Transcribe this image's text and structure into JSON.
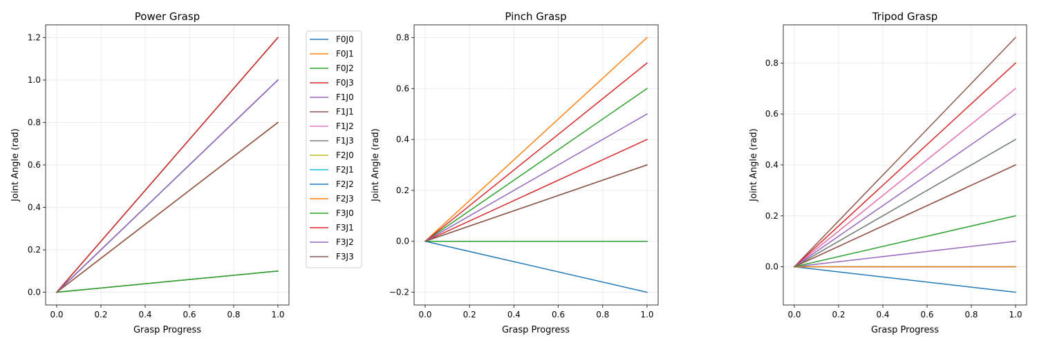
{
  "chart_data": [
    {
      "type": "line",
      "title": "Power Grasp",
      "xlabel": "Grasp Progress",
      "ylabel": "Joint Angle (rad)",
      "xlim": [
        -0.05,
        1.05
      ],
      "ylim": [
        -0.06,
        1.26
      ],
      "xticks": [
        0.0,
        0.2,
        0.4,
        0.6,
        0.8,
        1.0
      ],
      "yticks": [
        0.0,
        0.2,
        0.4,
        0.6,
        0.8,
        1.0,
        1.2
      ],
      "tick_decimals": 1,
      "grid": true,
      "legend_position": "outside-right",
      "x": [
        0.0,
        1.0
      ],
      "series": [
        {
          "name": "F0J0",
          "color": "#1f77b4",
          "values": [
            0,
            0.1
          ]
        },
        {
          "name": "F0J1",
          "color": "#ff7f0e",
          "values": [
            0,
            1.2
          ]
        },
        {
          "name": "F0J2",
          "color": "#2ca02c",
          "values": [
            0,
            1.0
          ]
        },
        {
          "name": "F0J3",
          "color": "#d62728",
          "values": [
            0,
            0.8
          ]
        },
        {
          "name": "F1J0",
          "color": "#9467bd",
          "values": [
            0,
            0.1
          ]
        },
        {
          "name": "F1J1",
          "color": "#8c564b",
          "values": [
            0,
            1.2
          ]
        },
        {
          "name": "F1J2",
          "color": "#e377c2",
          "values": [
            0,
            1.0
          ]
        },
        {
          "name": "F1J3",
          "color": "#7f7f7f",
          "values": [
            0,
            0.8
          ]
        },
        {
          "name": "F2J0",
          "color": "#bcbd22",
          "values": [
            0,
            0.1
          ]
        },
        {
          "name": "F2J1",
          "color": "#17becf",
          "values": [
            0,
            1.2
          ]
        },
        {
          "name": "F2J2",
          "color": "#1f77b4",
          "values": [
            0,
            1.0
          ]
        },
        {
          "name": "F2J3",
          "color": "#ff7f0e",
          "values": [
            0,
            0.8
          ]
        },
        {
          "name": "F3J0",
          "color": "#2ca02c",
          "values": [
            0,
            0.1
          ]
        },
        {
          "name": "F3J1",
          "color": "#d62728",
          "values": [
            0,
            1.2
          ]
        },
        {
          "name": "F3J2",
          "color": "#9467bd",
          "values": [
            0,
            1.0
          ]
        },
        {
          "name": "F3J3",
          "color": "#8c564b",
          "values": [
            0,
            0.8
          ]
        }
      ]
    },
    {
      "type": "line",
      "title": "Pinch Grasp",
      "xlabel": "Grasp Progress",
      "ylabel": "Joint Angle (rad)",
      "xlim": [
        -0.05,
        1.05
      ],
      "ylim": [
        -0.25,
        0.85
      ],
      "xticks": [
        0.0,
        0.2,
        0.4,
        0.6,
        0.8,
        1.0
      ],
      "yticks": [
        -0.2,
        0.0,
        0.2,
        0.4,
        0.6,
        0.8
      ],
      "tick_decimals": 1,
      "grid": true,
      "x": [
        0.0,
        1.0
      ],
      "series": [
        {
          "color": "#1f77b4",
          "values": [
            0,
            -0.2
          ]
        },
        {
          "color": "#ff7f0e",
          "values": [
            0,
            0.8
          ]
        },
        {
          "color": "#2ca02c",
          "values": [
            0,
            0.6
          ]
        },
        {
          "color": "#d62728",
          "values": [
            0,
            0.4
          ]
        },
        {
          "color": "#9467bd",
          "values": [
            0,
            0.0
          ]
        },
        {
          "color": "#8c564b",
          "values": [
            0,
            0.3
          ]
        },
        {
          "color": "#e377c2",
          "values": [
            0,
            0.0
          ]
        },
        {
          "color": "#7f7f7f",
          "values": [
            0,
            0.0
          ]
        },
        {
          "color": "#bcbd22",
          "values": [
            0,
            0.0
          ]
        },
        {
          "color": "#17becf",
          "values": [
            0,
            0.0
          ]
        },
        {
          "color": "#1f77b4",
          "values": [
            0,
            0.0
          ]
        },
        {
          "color": "#ff7f0e",
          "values": [
            0,
            0.0
          ]
        },
        {
          "color": "#2ca02c",
          "values": [
            0,
            0.0
          ]
        },
        {
          "color": "#d62728",
          "values": [
            0,
            0.7
          ]
        },
        {
          "color": "#9467bd",
          "values": [
            0,
            0.5
          ]
        },
        {
          "color": "#8c564b",
          "values": [
            0,
            0.3
          ]
        }
      ]
    },
    {
      "type": "line",
      "title": "Tripod Grasp",
      "xlabel": "Grasp Progress",
      "ylabel": "Joint Angle (rad)",
      "xlim": [
        -0.05,
        1.05
      ],
      "ylim": [
        -0.15,
        0.95
      ],
      "xticks": [
        0.0,
        0.2,
        0.4,
        0.6,
        0.8,
        1.0
      ],
      "yticks": [
        0.0,
        0.2,
        0.4,
        0.6,
        0.8
      ],
      "tick_decimals": 1,
      "grid": true,
      "x": [
        0.0,
        1.0
      ],
      "series": [
        {
          "color": "#1f77b4",
          "values": [
            0,
            -0.1
          ]
        },
        {
          "color": "#ff7f0e",
          "values": [
            0,
            0.7
          ]
        },
        {
          "color": "#2ca02c",
          "values": [
            0,
            0.5
          ]
        },
        {
          "color": "#d62728",
          "values": [
            0,
            0.4
          ]
        },
        {
          "color": "#9467bd",
          "values": [
            0,
            0.1
          ]
        },
        {
          "color": "#8c564b",
          "values": [
            0,
            0.9
          ]
        },
        {
          "color": "#e377c2",
          "values": [
            0,
            0.7
          ]
        },
        {
          "color": "#7f7f7f",
          "values": [
            0,
            0.5
          ]
        },
        {
          "color": "#bcbd22",
          "values": [
            0,
            0.0
          ]
        },
        {
          "color": "#17becf",
          "values": [
            0,
            0.0
          ]
        },
        {
          "color": "#1f77b4",
          "values": [
            0,
            0.0
          ]
        },
        {
          "color": "#ff7f0e",
          "values": [
            0,
            0.0
          ]
        },
        {
          "color": "#2ca02c",
          "values": [
            0,
            0.2
          ]
        },
        {
          "color": "#d62728",
          "values": [
            0,
            0.8
          ]
        },
        {
          "color": "#9467bd",
          "values": [
            0,
            0.6
          ]
        },
        {
          "color": "#8c564b",
          "values": [
            0,
            0.4
          ]
        }
      ]
    }
  ]
}
